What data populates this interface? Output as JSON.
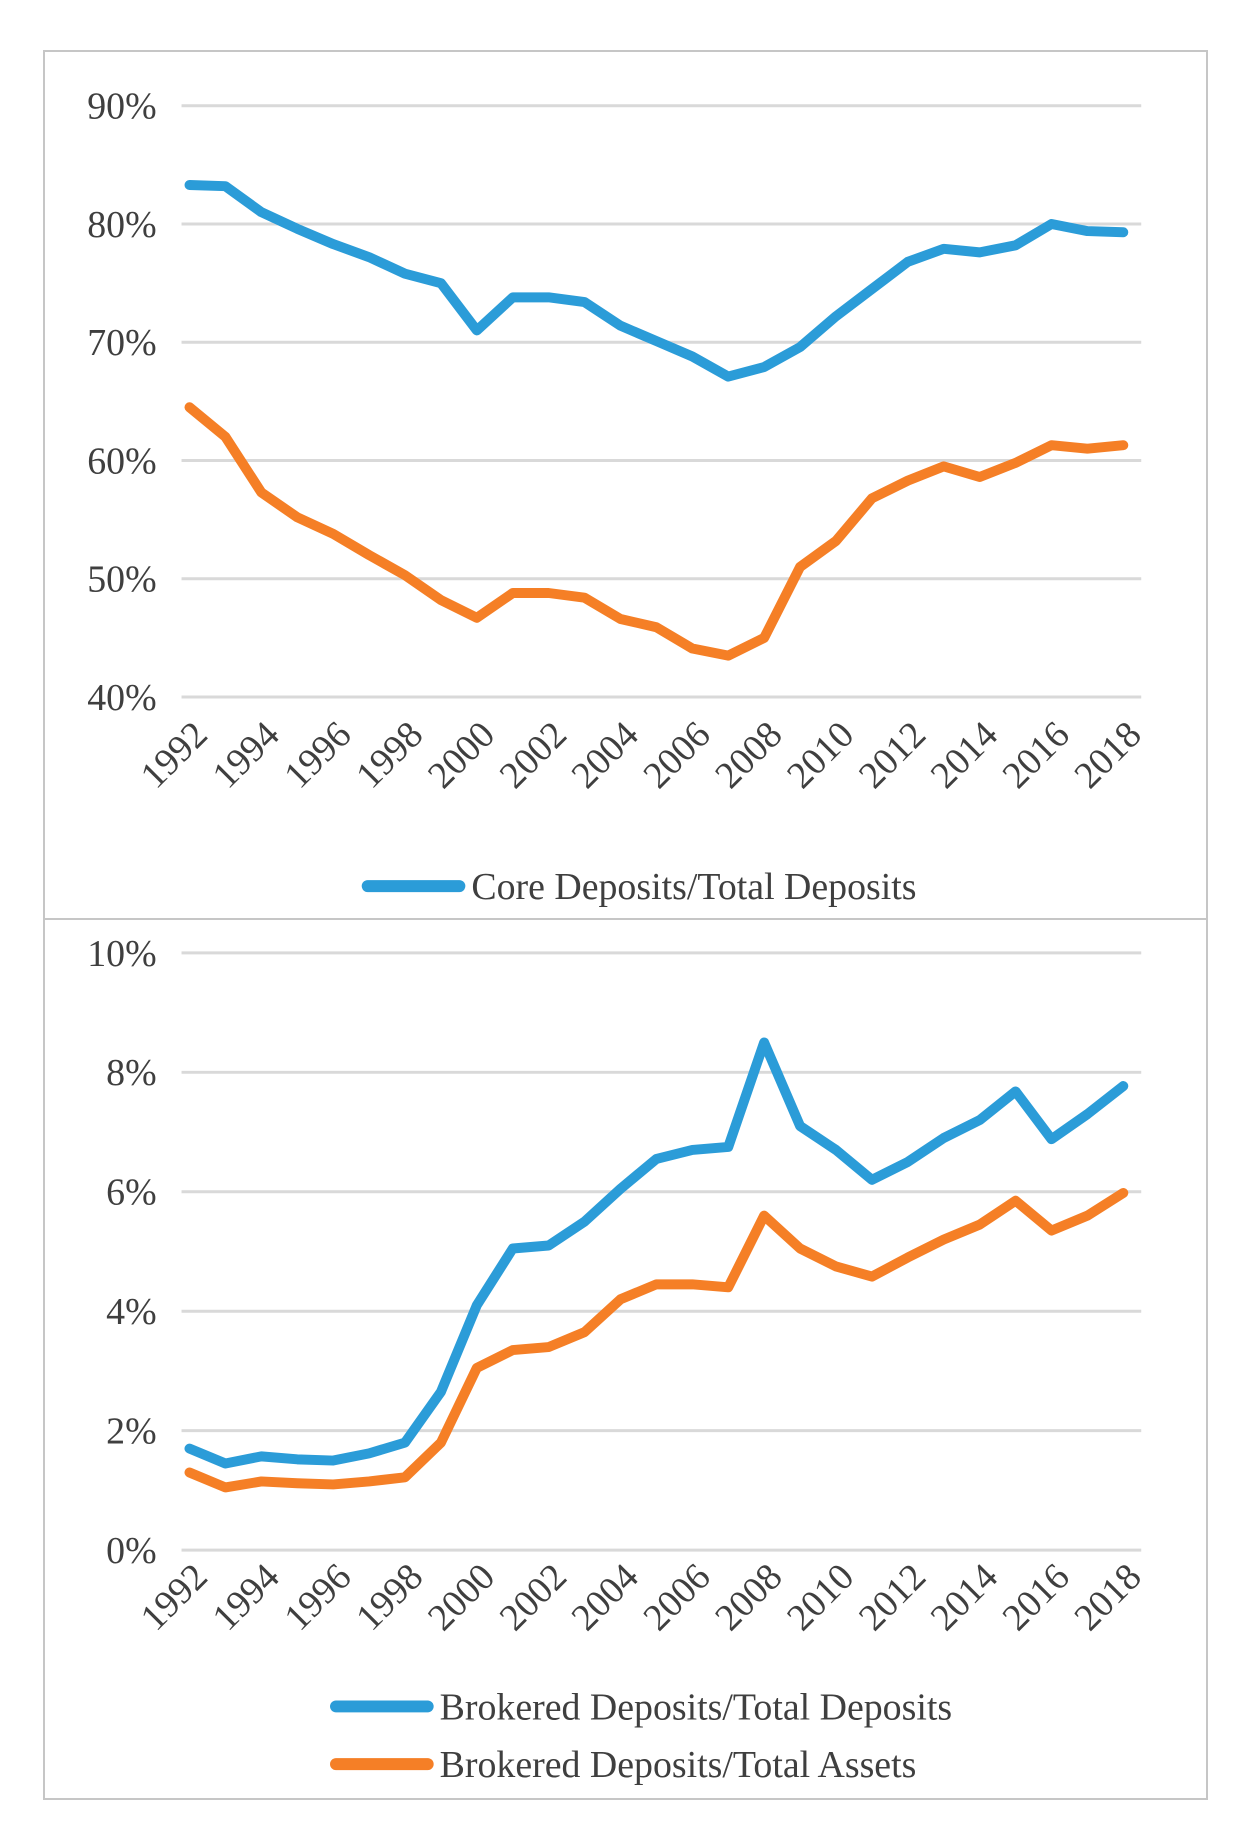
{
  "page": {
    "background": "#ffffff"
  },
  "colors": {
    "blue": "#2B9CD8",
    "orange": "#F57F26",
    "gridline": "#D9D9D9",
    "chart_border": "#C6C6C6",
    "text": "#3F3F3F"
  },
  "chart_data": [
    {
      "type": "line",
      "title": "",
      "xlabel": "",
      "ylabel": "",
      "ylim": [
        40,
        90
      ],
      "grid": "horizontal",
      "legend_position": "bottom-center",
      "y_tick_labels": [
        "90%",
        "80%",
        "70%",
        "60%",
        "50%",
        "40%"
      ],
      "categories": [
        "1992",
        "1993",
        "1994",
        "1995",
        "1996",
        "1997",
        "1998",
        "1999",
        "2000",
        "2001",
        "2002",
        "2003",
        "2004",
        "2005",
        "2006",
        "2007",
        "2008",
        "2009",
        "2010",
        "2011",
        "2012",
        "2013",
        "2014",
        "2015",
        "2016",
        "2017",
        "2018"
      ],
      "x_tick_labels": [
        "1992",
        "1994",
        "1996",
        "1998",
        "2000",
        "2002",
        "2004",
        "2006",
        "2008",
        "2010",
        "2012",
        "2014",
        "2016",
        "2018"
      ],
      "legend": [
        "Core Deposits/Total Deposits"
      ],
      "series": [
        {
          "name": "Core Deposits/Total Deposits",
          "color": "#2B9CD8",
          "in_legend": true,
          "values": [
            83.3,
            83.2,
            81.0,
            79.6,
            78.3,
            77.2,
            75.8,
            75.0,
            71.0,
            73.8,
            73.8,
            73.4,
            71.4,
            70.1,
            68.8,
            67.1,
            67.9,
            69.6,
            72.2,
            74.5,
            76.8,
            77.9,
            77.6,
            78.2,
            80.0,
            79.4,
            79.3
          ]
        },
        {
          "name": "",
          "color": "#F57F26",
          "in_legend": false,
          "values": [
            64.5,
            62.0,
            57.3,
            55.2,
            53.8,
            52.0,
            50.3,
            48.2,
            46.7,
            48.8,
            48.8,
            48.4,
            46.6,
            45.9,
            44.1,
            43.5,
            45.0,
            51.0,
            53.2,
            56.8,
            58.3,
            59.5,
            58.6,
            59.8,
            61.3,
            61.0,
            61.3
          ]
        }
      ]
    },
    {
      "type": "line",
      "title": "",
      "xlabel": "",
      "ylabel": "",
      "ylim": [
        0,
        10
      ],
      "grid": "horizontal",
      "legend_position": "bottom-center",
      "y_tick_labels": [
        "10%",
        "8%",
        "6%",
        "4%",
        "2%",
        "0%"
      ],
      "categories": [
        "1992",
        "1993",
        "1994",
        "1995",
        "1996",
        "1997",
        "1998",
        "1999",
        "2000",
        "2001",
        "2002",
        "2003",
        "2004",
        "2005",
        "2006",
        "2007",
        "2008",
        "2009",
        "2010",
        "2011",
        "2012",
        "2013",
        "2014",
        "2015",
        "2016",
        "2017",
        "2018"
      ],
      "x_tick_labels": [
        "1992",
        "1994",
        "1996",
        "1998",
        "2000",
        "2002",
        "2004",
        "2006",
        "2008",
        "2010",
        "2012",
        "2014",
        "2016",
        "2018"
      ],
      "legend": [
        "Brokered Deposits/Total Deposits",
        "Brokered Deposits/Total Assets"
      ],
      "series": [
        {
          "name": "Brokered Deposits/Total Deposits",
          "color": "#2B9CD8",
          "in_legend": true,
          "values": [
            1.7,
            1.45,
            1.57,
            1.52,
            1.5,
            1.62,
            1.8,
            2.65,
            4.1,
            5.05,
            5.1,
            5.5,
            6.05,
            6.55,
            6.7,
            6.75,
            8.5,
            7.1,
            6.7,
            6.2,
            6.5,
            6.9,
            7.2,
            7.68,
            6.88,
            7.3,
            7.77
          ]
        },
        {
          "name": "Brokered Deposits/Total Assets",
          "color": "#F57F26",
          "in_legend": true,
          "values": [
            1.3,
            1.05,
            1.15,
            1.12,
            1.1,
            1.15,
            1.22,
            1.8,
            3.05,
            3.35,
            3.4,
            3.65,
            4.2,
            4.45,
            4.45,
            4.4,
            5.6,
            5.05,
            4.75,
            4.58,
            4.9,
            5.2,
            5.45,
            5.85,
            5.35,
            5.6,
            5.98
          ]
        }
      ]
    }
  ]
}
